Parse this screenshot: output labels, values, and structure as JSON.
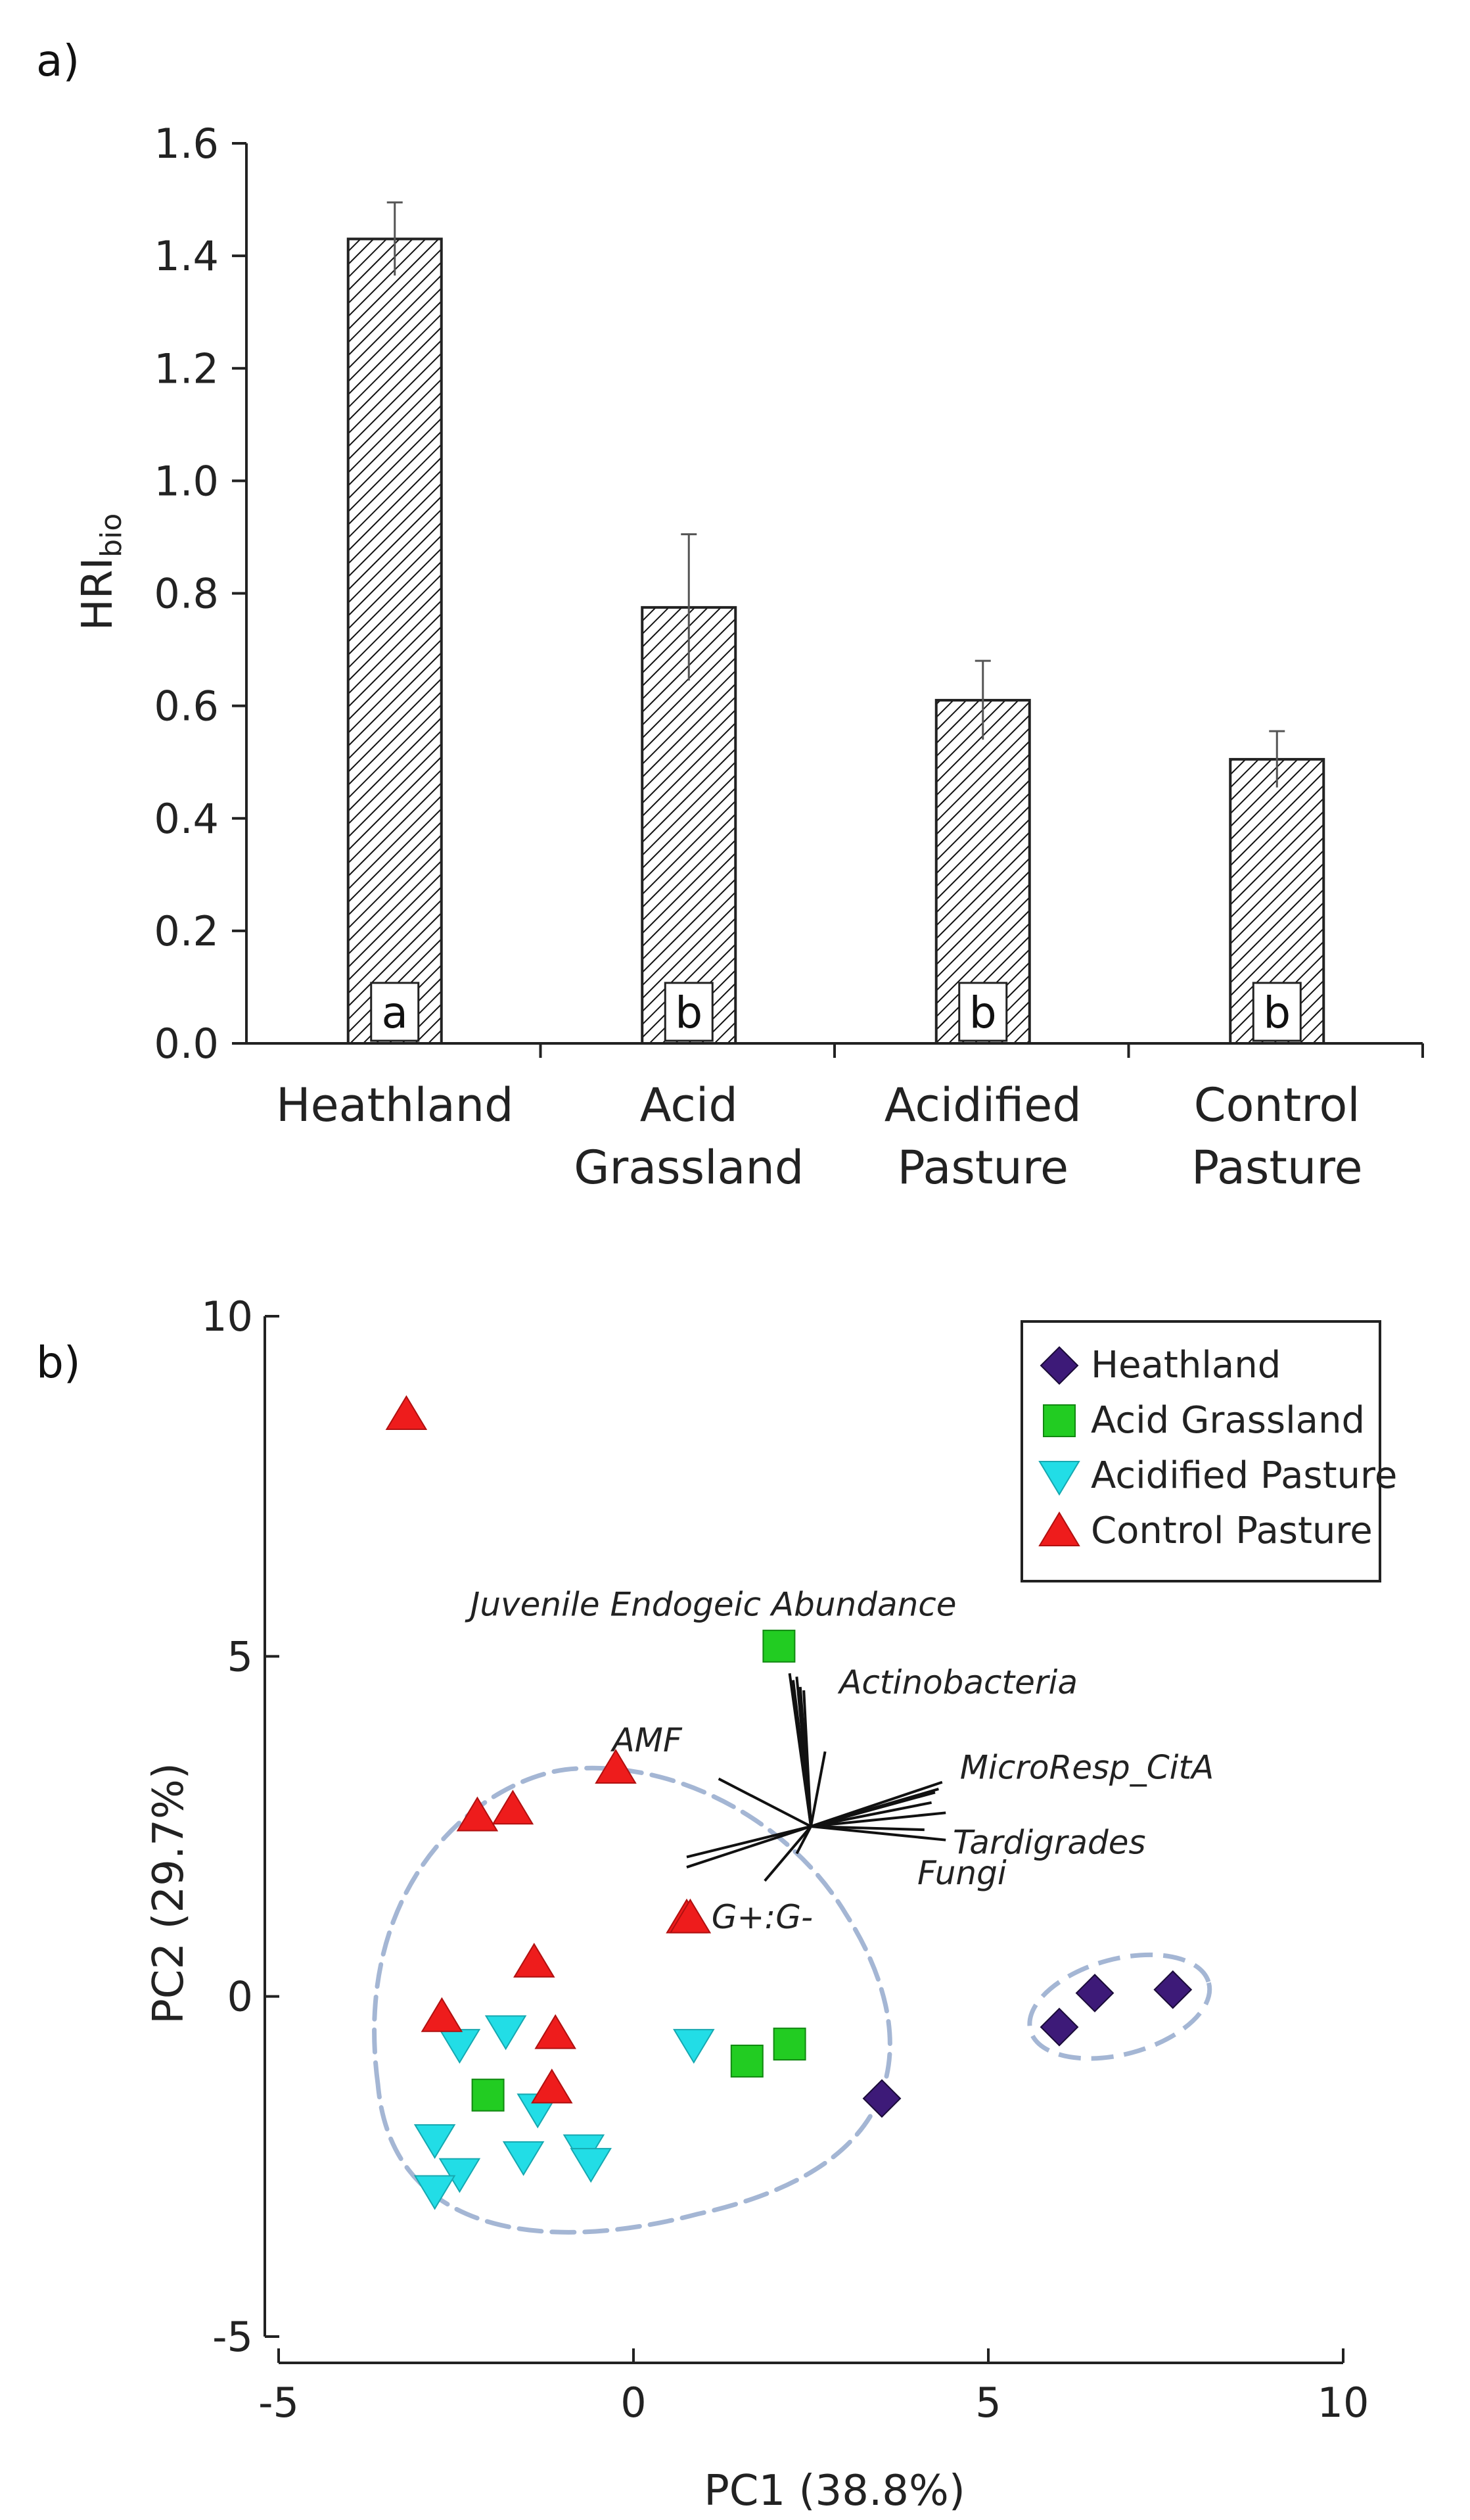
{
  "panels": {
    "a": "a)",
    "b": "b)"
  },
  "chart_data": [
    {
      "type": "bar",
      "panel": "a)",
      "categories": [
        [
          "Heathland"
        ],
        [
          "Acid",
          "Grassland"
        ],
        [
          "Acidified",
          "Pasture"
        ],
        [
          "Control",
          "Pasture"
        ]
      ],
      "values": [
        1.43,
        0.775,
        0.61,
        0.505
      ],
      "errors": [
        0.065,
        0.13,
        0.07,
        0.05
      ],
      "significance": [
        "a",
        "b",
        "b",
        "b"
      ],
      "ylabel": "HRI",
      "ylabel_subscript": "bio",
      "ylim": [
        0.0,
        1.6
      ],
      "yticks": [
        "0.0",
        "0.2",
        "0.4",
        "0.6",
        "0.8",
        "1.0",
        "1.2",
        "1.4",
        "1.6"
      ],
      "fill": "hatched",
      "grid": false
    },
    {
      "type": "scatter",
      "panel": "b)",
      "xlabel": "PC1 (38.8%)",
      "ylabel": "PC2 (29.7%)",
      "xlim": [
        -5,
        10
      ],
      "ylim": [
        -5,
        10
      ],
      "xticks": [
        "-5",
        "0",
        "5",
        "10"
      ],
      "yticks": [
        "-5",
        "0",
        "5",
        "10"
      ],
      "grid": false,
      "legend_position": "top-right",
      "series": [
        {
          "name": "Heathland",
          "marker": "diamond",
          "color": "#3d1a78",
          "points": [
            [
              3.5,
              -1.5
            ],
            [
              6.0,
              -0.45
            ],
            [
              6.5,
              0.05
            ],
            [
              7.6,
              0.1
            ]
          ]
        },
        {
          "name": "Acid Grassland",
          "marker": "square",
          "color": "#22cc22",
          "points": [
            [
              2.05,
              5.15
            ],
            [
              -2.05,
              -1.45
            ],
            [
              1.6,
              -0.95
            ],
            [
              2.2,
              -0.7
            ]
          ]
        },
        {
          "name": "Acidified Pasture",
          "marker": "triangle-down",
          "color": "#22dde6",
          "points": [
            [
              0.85,
              -0.7
            ],
            [
              -2.45,
              -0.7
            ],
            [
              -1.8,
              -0.5
            ],
            [
              -1.35,
              -1.65
            ],
            [
              -2.8,
              -2.1
            ],
            [
              -2.45,
              -2.6
            ],
            [
              -2.8,
              -2.85
            ],
            [
              -1.55,
              -2.35
            ],
            [
              -0.7,
              -2.25
            ],
            [
              -0.6,
              -2.45
            ]
          ]
        },
        {
          "name": "Control Pasture",
          "marker": "triangle-up",
          "color": "#ee1c1c",
          "points": [
            [
              -3.2,
              8.55
            ],
            [
              -2.2,
              2.65
            ],
            [
              -1.7,
              2.75
            ],
            [
              -0.25,
              3.35
            ],
            [
              0.75,
              1.15
            ],
            [
              0.8,
              1.15
            ],
            [
              -1.4,
              0.5
            ],
            [
              -2.7,
              -0.3
            ],
            [
              -1.1,
              -0.55
            ],
            [
              -1.15,
              -1.35
            ]
          ]
        }
      ],
      "loadings": {
        "origin": [
          2.5,
          2.5
        ],
        "vectors": [
          [
            2.2,
            4.75
          ],
          [
            2.3,
            4.7
          ],
          [
            2.35,
            4.55
          ],
          [
            2.4,
            4.5
          ],
          [
            2.25,
            4.65
          ],
          [
            2.7,
            3.6
          ],
          [
            1.2,
            3.2
          ],
          [
            4.35,
            3.15
          ],
          [
            4.3,
            3.05
          ],
          [
            4.25,
            3.0
          ],
          [
            4.2,
            2.85
          ],
          [
            4.4,
            2.7
          ],
          [
            4.4,
            2.3
          ],
          [
            4.1,
            2.45
          ],
          [
            0.75,
            2.05
          ],
          [
            0.75,
            1.9
          ],
          [
            2.3,
            2.1
          ],
          [
            1.85,
            1.7
          ]
        ],
        "labels": [
          {
            "text": "Juvenile Endogeic Abundance",
            "x": -2.3,
            "y": 5.6
          },
          {
            "text": "Actinobacteria",
            "x": 2.9,
            "y": 4.45
          },
          {
            "text": "AMF",
            "x": -0.3,
            "y": 3.6
          },
          {
            "text": "MicroResp_CitA",
            "x": 4.6,
            "y": 3.2
          },
          {
            "text": "Tardigrades",
            "x": 4.5,
            "y": 2.1
          },
          {
            "text": "Fungi",
            "x": 4.0,
            "y": 1.65
          },
          {
            "text": "G+:G-",
            "x": 1.1,
            "y": 1.0
          }
        ]
      },
      "group_outlines": 2
    }
  ]
}
